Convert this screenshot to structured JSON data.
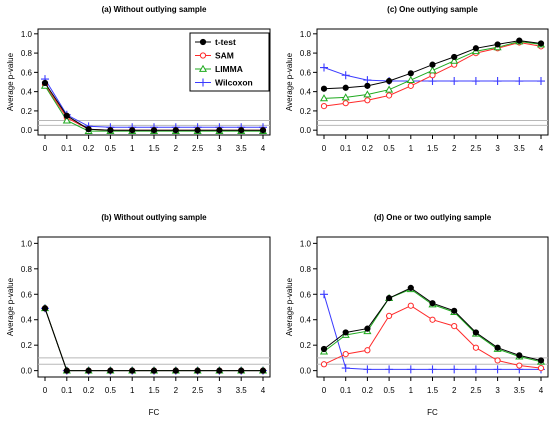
{
  "colors": {
    "t-test": "#000000",
    "SAM": "#ff2a2a",
    "LIMMA": "#1faa1f",
    "Wilcoxon": "#3b3bff",
    "refline": "#b8b8b8"
  },
  "legend": {
    "placement": "top-right",
    "entries": [
      {
        "name": "t-test",
        "marker": "filled-circle"
      },
      {
        "name": "SAM",
        "marker": "open-circle"
      },
      {
        "name": "LIMMA",
        "marker": "open-triangle"
      },
      {
        "name": "Wilcoxon",
        "marker": "plus"
      }
    ]
  },
  "chart_data": [
    {
      "type": "line",
      "title": "(a) Without outlying sample",
      "xlabel": "",
      "ylabel": "Average p-value",
      "categories": [
        "0",
        "0.1",
        "0.2",
        "0.5",
        "1",
        "1.5",
        "2",
        "2.5",
        "3",
        "3.5",
        "4"
      ],
      "ylim": [
        0,
        1
      ],
      "yticks": [
        "0.0",
        "0.2",
        "0.4",
        "0.6",
        "0.8",
        "1.0"
      ],
      "reference_lines": [
        0.05,
        0.1
      ],
      "grid": false,
      "series": [
        {
          "name": "t-test",
          "values": [
            0.49,
            0.15,
            0.01,
            0.0,
            0.0,
            0.0,
            0.0,
            0.0,
            0.0,
            0.0,
            0.0
          ]
        },
        {
          "name": "SAM",
          "values": [
            0.47,
            0.13,
            0.01,
            0.0,
            0.0,
            0.0,
            0.0,
            0.0,
            0.0,
            0.0,
            0.0
          ]
        },
        {
          "name": "LIMMA",
          "values": [
            0.46,
            0.1,
            -0.01,
            -0.01,
            -0.01,
            -0.01,
            -0.01,
            -0.01,
            -0.01,
            -0.01,
            -0.01
          ]
        },
        {
          "name": "Wilcoxon",
          "values": [
            0.53,
            0.16,
            0.04,
            0.03,
            0.03,
            0.03,
            0.03,
            0.03,
            0.03,
            0.03,
            0.03
          ]
        }
      ]
    },
    {
      "type": "line",
      "title": "(c) One outlying sample",
      "xlabel": "",
      "ylabel": "Average p-value",
      "categories": [
        "0",
        "0.1",
        "0.2",
        "0.5",
        "1",
        "1.5",
        "2",
        "2.5",
        "3",
        "3.5",
        "4"
      ],
      "ylim": [
        0,
        1
      ],
      "yticks": [
        "0.0",
        "0.2",
        "0.4",
        "0.6",
        "0.8",
        "1.0"
      ],
      "reference_lines": [
        0.05,
        0.1
      ],
      "grid": false,
      "series": [
        {
          "name": "t-test",
          "values": [
            0.43,
            0.44,
            0.46,
            0.51,
            0.59,
            0.68,
            0.76,
            0.85,
            0.89,
            0.93,
            0.9
          ]
        },
        {
          "name": "SAM",
          "values": [
            0.25,
            0.28,
            0.31,
            0.36,
            0.46,
            0.57,
            0.68,
            0.8,
            0.85,
            0.91,
            0.87
          ]
        },
        {
          "name": "LIMMA",
          "values": [
            0.33,
            0.34,
            0.37,
            0.42,
            0.52,
            0.62,
            0.72,
            0.82,
            0.86,
            0.92,
            0.89
          ]
        },
        {
          "name": "Wilcoxon",
          "values": [
            0.65,
            0.57,
            0.52,
            0.51,
            0.51,
            0.51,
            0.51,
            0.51,
            0.51,
            0.51,
            0.51
          ]
        }
      ]
    },
    {
      "type": "line",
      "title": "(b) Without outlying sample",
      "xlabel": "FC",
      "ylabel": "Average p-value",
      "categories": [
        "0",
        "0.1",
        "0.2",
        "0.5",
        "1",
        "1.5",
        "2",
        "2.5",
        "3",
        "3.5",
        "4"
      ],
      "ylim": [
        0,
        1
      ],
      "yticks": [
        "0.0",
        "0.2",
        "0.4",
        "0.6",
        "0.8",
        "1.0"
      ],
      "reference_lines": [
        0.05,
        0.1
      ],
      "grid": false,
      "series": [
        {
          "name": "t-test",
          "values": [
            0.49,
            0.0,
            0.0,
            0.0,
            0.0,
            0.0,
            0.0,
            0.0,
            0.0,
            0.0,
            0.0
          ]
        },
        {
          "name": "SAM",
          "values": [
            0.49,
            0.0,
            0.0,
            0.0,
            0.0,
            0.0,
            0.0,
            0.0,
            0.0,
            0.0,
            0.0
          ]
        },
        {
          "name": "LIMMA",
          "values": [
            0.49,
            0.0,
            0.0,
            0.0,
            0.0,
            0.0,
            0.0,
            0.0,
            0.0,
            0.0,
            0.0
          ]
        },
        {
          "name": "Wilcoxon",
          "values": [
            0.49,
            0.0,
            0.0,
            0.0,
            0.0,
            0.0,
            0.0,
            0.0,
            0.0,
            0.0,
            0.0
          ]
        }
      ]
    },
    {
      "type": "line",
      "title": "(d) One or two outlying sample",
      "xlabel": "FC",
      "ylabel": "Average p-value",
      "categories": [
        "0",
        "0.1",
        "0.2",
        "0.5",
        "1",
        "1.5",
        "2",
        "2.5",
        "3",
        "3.5",
        "4"
      ],
      "ylim": [
        0,
        1
      ],
      "yticks": [
        "0.0",
        "0.2",
        "0.4",
        "0.6",
        "0.8",
        "1.0"
      ],
      "reference_lines": [
        0.05,
        0.1
      ],
      "grid": false,
      "series": [
        {
          "name": "t-test",
          "values": [
            0.17,
            0.3,
            0.33,
            0.57,
            0.65,
            0.53,
            0.47,
            0.3,
            0.18,
            0.12,
            0.08
          ]
        },
        {
          "name": "SAM",
          "values": [
            0.05,
            0.13,
            0.16,
            0.43,
            0.51,
            0.4,
            0.35,
            0.18,
            0.08,
            0.04,
            0.02
          ]
        },
        {
          "name": "LIMMA",
          "values": [
            0.15,
            0.28,
            0.31,
            0.57,
            0.64,
            0.52,
            0.46,
            0.29,
            0.17,
            0.11,
            0.07
          ]
        },
        {
          "name": "Wilcoxon",
          "values": [
            0.6,
            0.02,
            0.01,
            0.01,
            0.01,
            0.01,
            0.01,
            0.01,
            0.01,
            0.01,
            0.01
          ]
        }
      ]
    }
  ]
}
